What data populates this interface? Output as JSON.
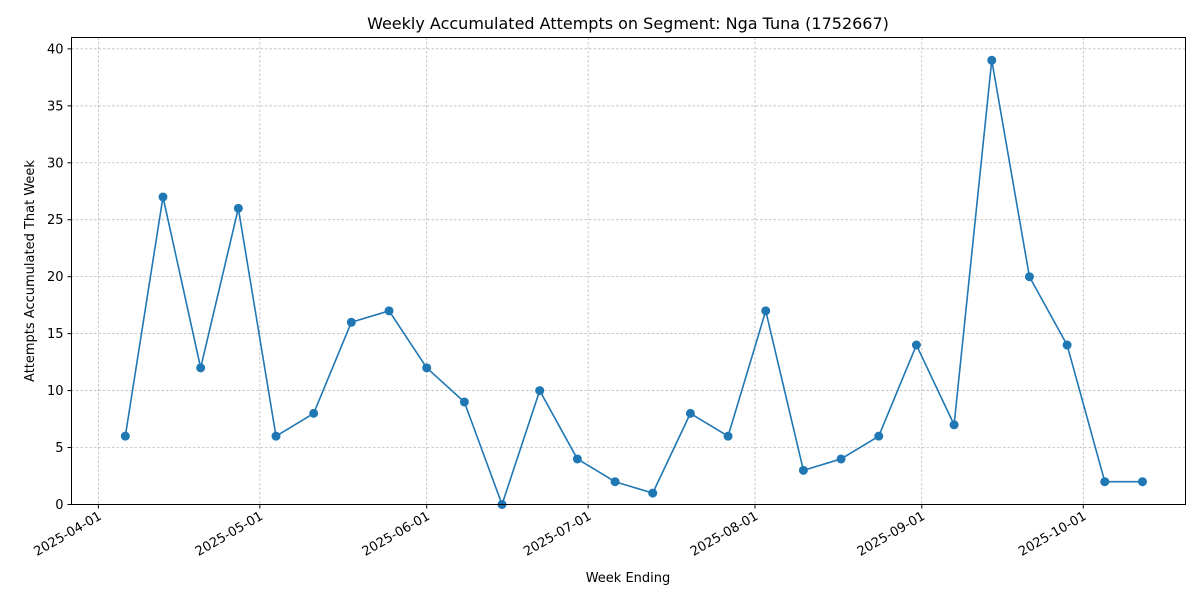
{
  "chart_data": {
    "type": "line",
    "title": "Weekly Accumulated Attempts on Segment: Nga Tuna (1752667)",
    "xlabel": "Week Ending",
    "ylabel": "Attempts Accumulated That Week",
    "x_tick_labels": [
      "2025-04-01",
      "2025-05-01",
      "2025-06-01",
      "2025-07-01",
      "2025-08-01",
      "2025-09-01",
      "2025-10-01"
    ],
    "y_ticks": [
      0,
      5,
      10,
      15,
      20,
      25,
      30,
      35,
      40
    ],
    "ylim": [
      0,
      41
    ],
    "xlim": [
      "2025-03-27",
      "2025-10-20"
    ],
    "grid": true,
    "series": [
      {
        "color": "#1f77b4",
        "marker": "circle",
        "x": [
          "2025-04-06",
          "2025-04-13",
          "2025-04-20",
          "2025-04-27",
          "2025-05-04",
          "2025-05-11",
          "2025-05-18",
          "2025-05-25",
          "2025-06-01",
          "2025-06-08",
          "2025-06-15",
          "2025-06-22",
          "2025-06-29",
          "2025-07-06",
          "2025-07-13",
          "2025-07-20",
          "2025-07-27",
          "2025-08-03",
          "2025-08-10",
          "2025-08-17",
          "2025-08-24",
          "2025-08-31",
          "2025-09-07",
          "2025-09-14",
          "2025-09-21",
          "2025-09-28",
          "2025-10-05",
          "2025-10-12"
        ],
        "values": [
          6,
          27,
          12,
          26,
          6,
          8,
          16,
          17,
          12,
          9,
          0,
          10,
          4,
          2,
          1,
          8,
          6,
          17,
          3,
          4,
          6,
          14,
          7,
          39,
          20,
          14,
          2,
          2
        ]
      }
    ]
  }
}
